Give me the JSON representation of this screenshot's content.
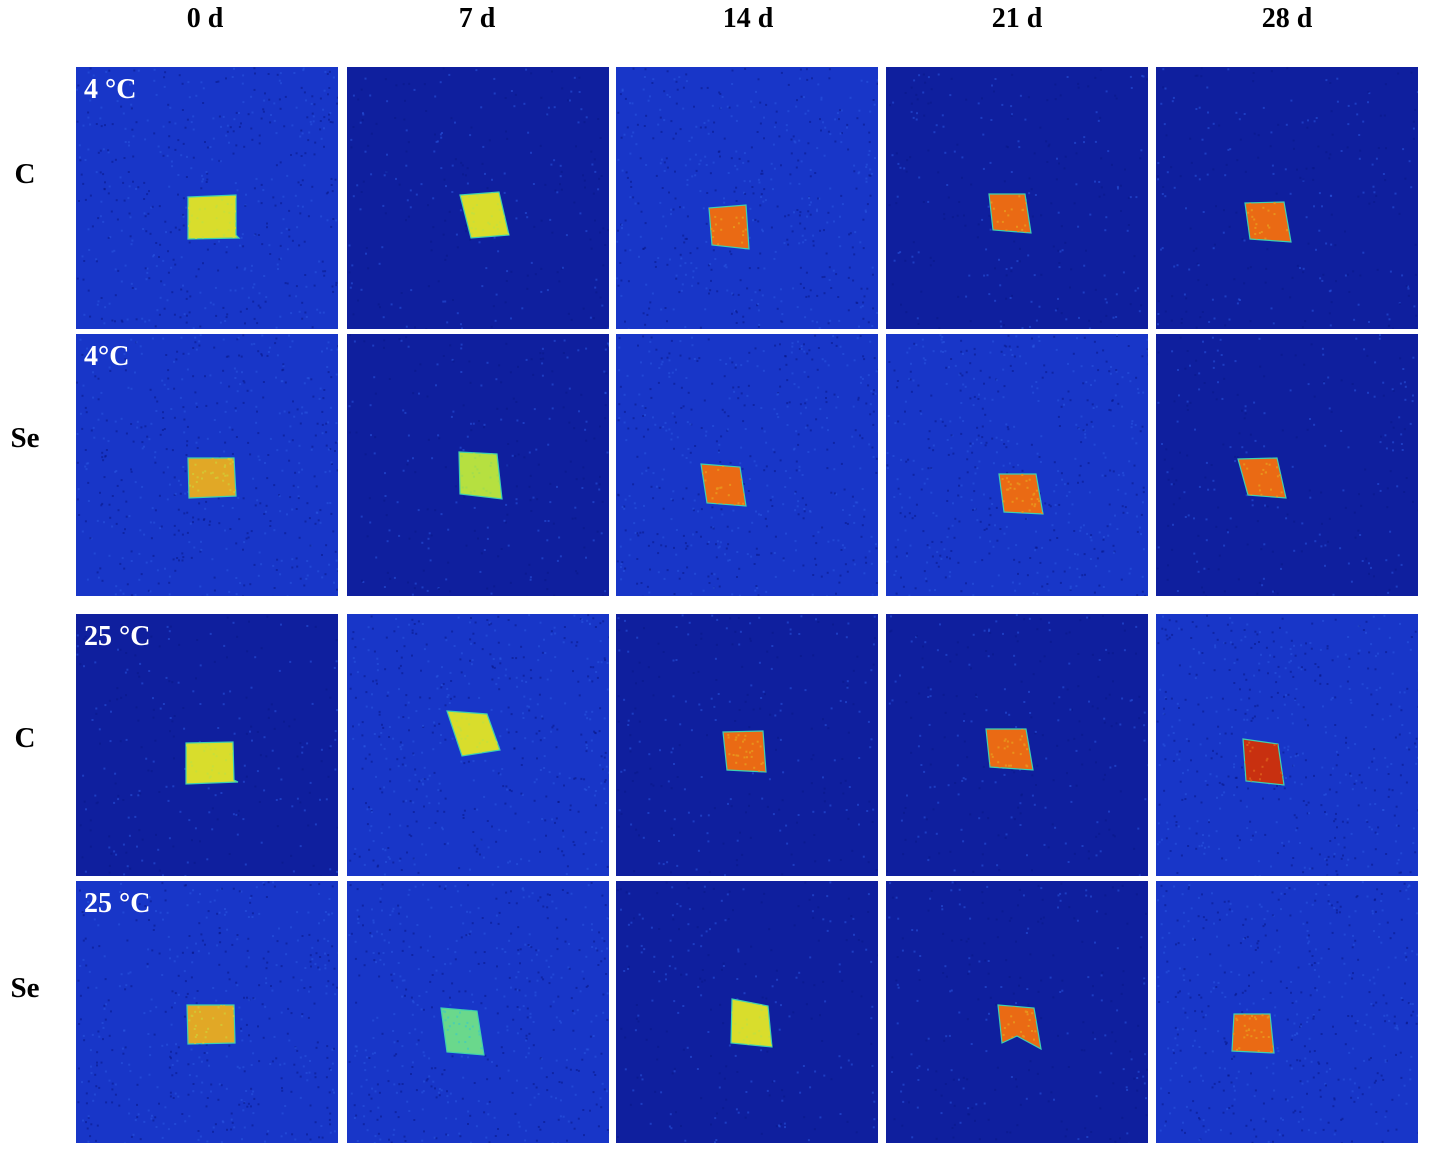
{
  "columns": [
    "0 d",
    "7 d",
    "14 d",
    "21 d",
    "28 d"
  ],
  "rows": [
    {
      "label": "C",
      "temperature": "4 °C"
    },
    {
      "label": "Se",
      "temperature": "4°C"
    },
    {
      "label": "C",
      "temperature": "25 °C"
    },
    {
      "label": "Se",
      "temperature": "25 °C"
    }
  ],
  "colors": {
    "background_deep": "#0f1f9e",
    "background_light": "#1836c8",
    "sample_yellow": "#d8dc2a",
    "sample_greenyellow": "#a8e040",
    "sample_cyan": "#55d8a0",
    "sample_orange": "#e86a14",
    "sample_red": "#c8300e"
  },
  "cells": [
    [
      {
        "tone": "yellow",
        "bg": "light"
      },
      {
        "tone": "yellow",
        "bg": "deep"
      },
      {
        "tone": "orange",
        "bg": "light"
      },
      {
        "tone": "orange",
        "bg": "deep"
      },
      {
        "tone": "orange",
        "bg": "deep"
      }
    ],
    [
      {
        "tone": "orange-yellow",
        "bg": "light"
      },
      {
        "tone": "greenyellow",
        "bg": "deep"
      },
      {
        "tone": "orange",
        "bg": "light"
      },
      {
        "tone": "orange",
        "bg": "light"
      },
      {
        "tone": "orange",
        "bg": "deep"
      }
    ],
    [
      {
        "tone": "yellow",
        "bg": "deep"
      },
      {
        "tone": "yellow",
        "bg": "light"
      },
      {
        "tone": "orange",
        "bg": "deep"
      },
      {
        "tone": "orange",
        "bg": "deep"
      },
      {
        "tone": "red",
        "bg": "light"
      }
    ],
    [
      {
        "tone": "orange-yellow",
        "bg": "light"
      },
      {
        "tone": "cyan",
        "bg": "light"
      },
      {
        "tone": "yellow",
        "bg": "deep"
      },
      {
        "tone": "orange",
        "bg": "deep"
      },
      {
        "tone": "orange",
        "bg": "light"
      }
    ]
  ]
}
